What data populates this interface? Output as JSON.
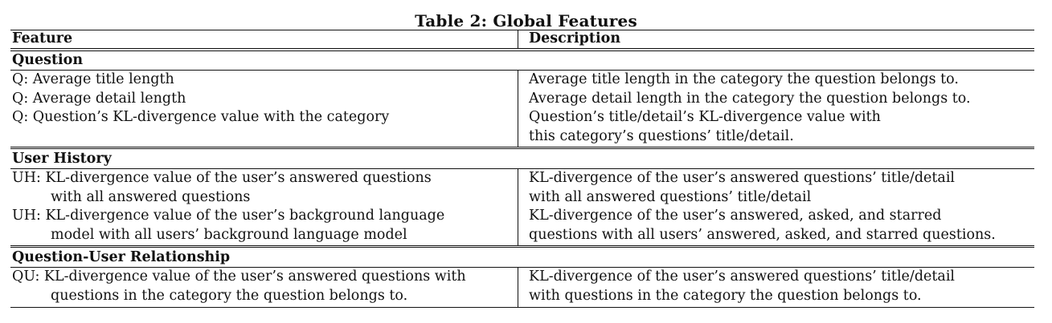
{
  "caption": "Table 2: Global Features",
  "header": {
    "feature": "Feature",
    "description": "Description"
  },
  "sections": [
    {
      "title": "Question",
      "rows": [
        {
          "feature": [
            "Q: Average title length"
          ],
          "description": [
            "Average title length in the category the question belongs to."
          ]
        },
        {
          "feature": [
            "Q: Average detail length"
          ],
          "description": [
            "Average detail length in the category the question belongs to."
          ]
        },
        {
          "feature": [
            "Q: Question’s KL-divergence value with the category"
          ],
          "description": [
            "Question’s title/detail’s KL-divergence value with",
            "this category’s questions’ title/detail."
          ]
        }
      ]
    },
    {
      "title": "User History",
      "rows": [
        {
          "feature": [
            "UH: KL-divergence value of the user’s answered questions",
            "with all answered questions"
          ],
          "description": [
            "KL-divergence of the user’s answered questions’ title/detail",
            "with all answered questions’ title/detail"
          ]
        },
        {
          "feature": [
            "UH: KL-divergence value of the user’s background language",
            "model with all users’ background language model"
          ],
          "description": [
            "KL-divergence of the user’s answered, asked, and starred",
            "questions with all users’ answered, asked, and starred questions."
          ]
        }
      ]
    },
    {
      "title": "Question-User Relationship",
      "rows": [
        {
          "feature": [
            "QU: KL-divergence value of the user’s answered questions with",
            "questions in the category the question belongs to."
          ],
          "description": [
            "KL-divergence of the user’s answered questions’ title/detail",
            "with questions in the category the question belongs to."
          ]
        }
      ]
    }
  ]
}
